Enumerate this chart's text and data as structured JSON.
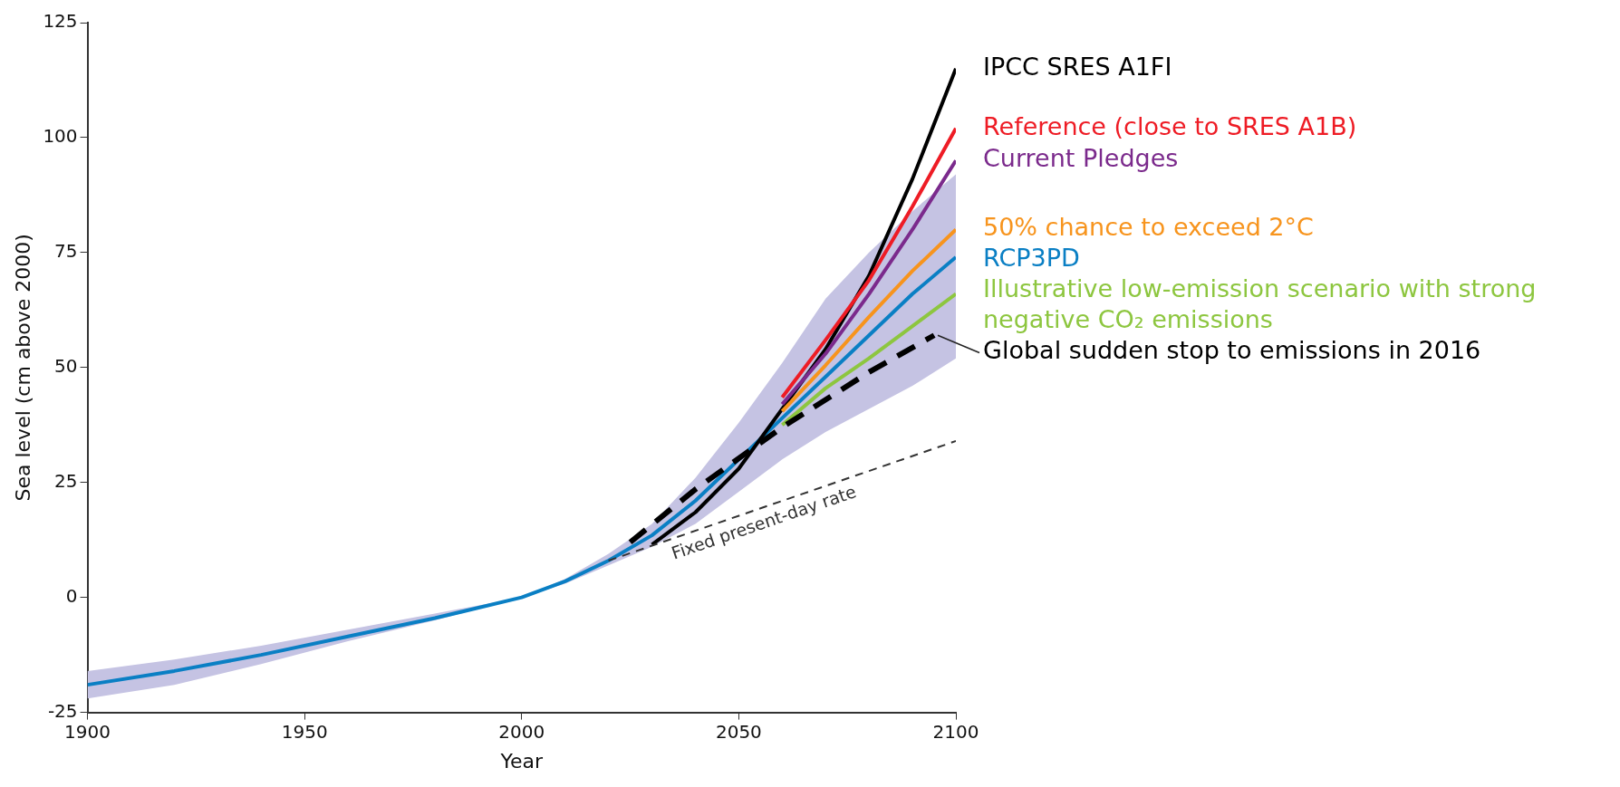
{
  "chart_data": {
    "type": "line",
    "xlabel": "Year",
    "ylabel": "Sea level (cm above 2000)",
    "xlim": [
      1900,
      2100
    ],
    "xticks": [
      1900,
      1950,
      2000,
      2050,
      2100
    ],
    "ylim": [
      -25,
      125
    ],
    "yticks": [
      -25,
      0,
      25,
      50,
      75,
      100,
      125
    ],
    "grid": false,
    "x": [
      1900,
      1920,
      1940,
      1960,
      1980,
      2000,
      2010,
      2020,
      2030,
      2040,
      2050,
      2060,
      2070,
      2080,
      2090,
      2100
    ],
    "series": [
      {
        "name": "IPCC SRES A1FI",
        "color": "#000000",
        "x": [
          2030,
          2040,
          2050,
          2070,
          2080,
          2090,
          2100
        ],
        "values": [
          11.5,
          18.5,
          28,
          54,
          70,
          91,
          115
        ]
      },
      {
        "name": "Reference (close to SRES A1B)",
        "color": "#ee1c25",
        "x": [
          2060,
          2070,
          2080,
          2090,
          2100
        ],
        "values": [
          43.5,
          56,
          69,
          85,
          102
        ]
      },
      {
        "name": "Current Pledges",
        "color": "#7b2a8c",
        "x": [
          2060,
          2070,
          2080,
          2090,
          2100
        ],
        "values": [
          42,
          53,
          66,
          80,
          95
        ]
      },
      {
        "name": "50% chance to exceed 2°C",
        "color": "#f7941d",
        "x": [
          2060,
          2070,
          2080,
          2090,
          2100
        ],
        "values": [
          40.5,
          50.5,
          61,
          71,
          80
        ]
      },
      {
        "name": "RCP3PD",
        "color": "#0a7fc4",
        "values": [
          -19,
          -16,
          -12.5,
          -8.5,
          -4.5,
          0,
          3.5,
          8,
          13.5,
          21,
          30,
          39,
          48,
          57,
          66,
          74
        ],
        "lower": [
          -22,
          -19,
          -14.5,
          -9.5,
          -5,
          0,
          3,
          7,
          11,
          16,
          23,
          30,
          36,
          41,
          46,
          52
        ],
        "upper": [
          -16,
          -13.5,
          -10.5,
          -7,
          -3.5,
          0,
          4,
          9.5,
          16,
          26,
          38,
          51,
          65,
          75,
          84,
          92
        ]
      },
      {
        "name": "Illustrative low-emission scenario with strong negative CO₂ emissions",
        "color": "#8dc63f",
        "x": [
          2060,
          2070,
          2080,
          2090,
          2100
        ],
        "values": [
          37.5,
          45.5,
          52,
          59,
          66
        ]
      },
      {
        "name": "Global sudden stop to emissions in 2016",
        "color": "#000000",
        "line_style": "dashed",
        "x": [
          2025,
          2040,
          2060,
          2080,
          2095
        ],
        "values": [
          12,
          23.5,
          37,
          49,
          57
        ]
      },
      {
        "name": "Fixed present-day rate",
        "color": "#333333",
        "line_style": "dashed",
        "x": [
          2020,
          2100
        ],
        "values": [
          8,
          34
        ]
      }
    ]
  }
}
